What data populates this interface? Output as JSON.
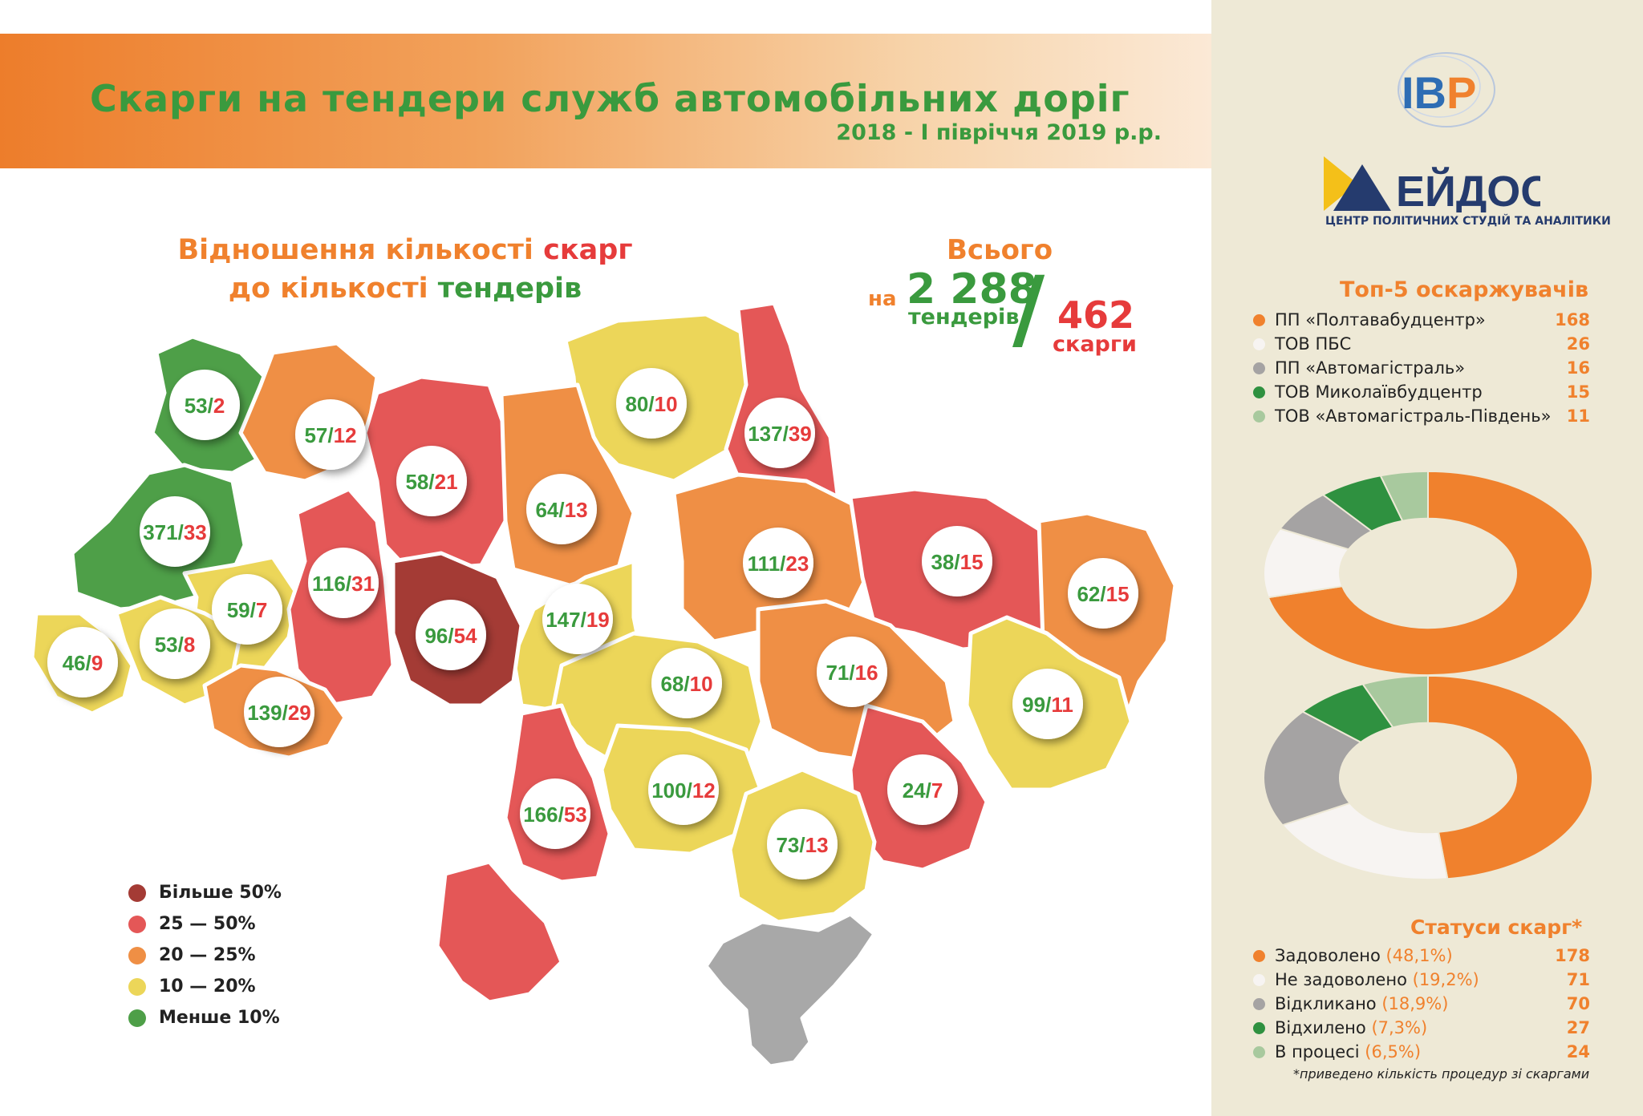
{
  "header": {
    "title": "Скарги на тендери служб автомобільних доріг",
    "subtitle": "2018 - І півріччя 2019 р.р."
  },
  "logos": {
    "ibp": "IBP",
    "eidos_name": "ЕЙДОС",
    "eidos_sub": "ЦЕНТР ПОЛІТИЧНИХ СТУДІЙ ТА АНАЛІТИКИ"
  },
  "ratio_title": {
    "part1": "Відношення кількості ",
    "complaints": "скарг",
    "part2": "до кількості ",
    "tenders": "тендерів"
  },
  "totals": {
    "label": "Всього",
    "na": "на",
    "tenders_value": "2 288",
    "tenders_word": "тендерів",
    "slash": "/",
    "complaints_value": "462",
    "complaints_word": "скарги"
  },
  "legend": [
    {
      "label": "Більше 50%",
      "color": "#a43b35"
    },
    {
      "label": "25 — 50%",
      "color": "#e45757"
    },
    {
      "label": "20 — 25%",
      "color": "#ef8f45"
    },
    {
      "label": "10 — 20%",
      "color": "#ecd659"
    },
    {
      "label": "Менше 10%",
      "color": "#4e9f48"
    }
  ],
  "chart_data": [
    {
      "type": "map",
      "regions": [
        {
          "tenders": "53",
          "complaints": "2"
        },
        {
          "tenders": "57",
          "complaints": "12"
        },
        {
          "tenders": "58",
          "complaints": "21"
        },
        {
          "tenders": "80",
          "complaints": "10"
        },
        {
          "tenders": "137",
          "complaints": "39"
        },
        {
          "tenders": "371",
          "complaints": "33"
        },
        {
          "tenders": "64",
          "complaints": "13"
        },
        {
          "tenders": "59",
          "complaints": "7"
        },
        {
          "tenders": "116",
          "complaints": "31"
        },
        {
          "tenders": "111",
          "complaints": "23"
        },
        {
          "tenders": "38",
          "complaints": "15"
        },
        {
          "tenders": "62",
          "complaints": "15"
        },
        {
          "tenders": "147",
          "complaints": "19"
        },
        {
          "tenders": "46",
          "complaints": "9"
        },
        {
          "tenders": "53",
          "complaints": "8"
        },
        {
          "tenders": "96",
          "complaints": "54"
        },
        {
          "tenders": "68",
          "complaints": "10"
        },
        {
          "tenders": "71",
          "complaints": "16"
        },
        {
          "tenders": "139",
          "complaints": "29"
        },
        {
          "tenders": "99",
          "complaints": "11"
        },
        {
          "tenders": "166",
          "complaints": "53"
        },
        {
          "tenders": "100",
          "complaints": "12"
        },
        {
          "tenders": "24",
          "complaints": "7"
        },
        {
          "tenders": "73",
          "complaints": "13"
        }
      ]
    },
    {
      "type": "pie",
      "title": "Топ-5 оскаржувачів",
      "labels": [
        "ПП «Полтавабудцентр»",
        "ТОВ ПБС",
        "ПП «Автомагістраль»",
        "ТОВ Миколаївбудцентр",
        "ТОВ «Автомагістраль-Південь»"
      ],
      "values": [
        168,
        26,
        16,
        15,
        11
      ],
      "colors": [
        "#f0812d",
        "#f7f4f2",
        "#a5a3a3",
        "#2f9140",
        "#a8c99e"
      ]
    },
    {
      "type": "pie",
      "title": "Статуси скарг*",
      "labels": [
        "Задоволено",
        "Не задоволено",
        "Відкликано",
        "Відхилено",
        "В процесі"
      ],
      "percents": [
        "(48,1%)",
        "(19,2%)",
        "(18,9%)",
        "(7,3%)",
        "(6,5%)"
      ],
      "values": [
        178,
        71,
        70,
        27,
        24
      ],
      "colors": [
        "#f0812d",
        "#f7f4f2",
        "#a5a3a3",
        "#2f9140",
        "#a8c99e"
      ],
      "note": "*приведено кількість процедур зі скаргами"
    }
  ],
  "colors": {
    "orange": "#f0812d",
    "green": "#3a9a3e",
    "red": "#e63b3b",
    "crimea": "#a8a8a8"
  }
}
